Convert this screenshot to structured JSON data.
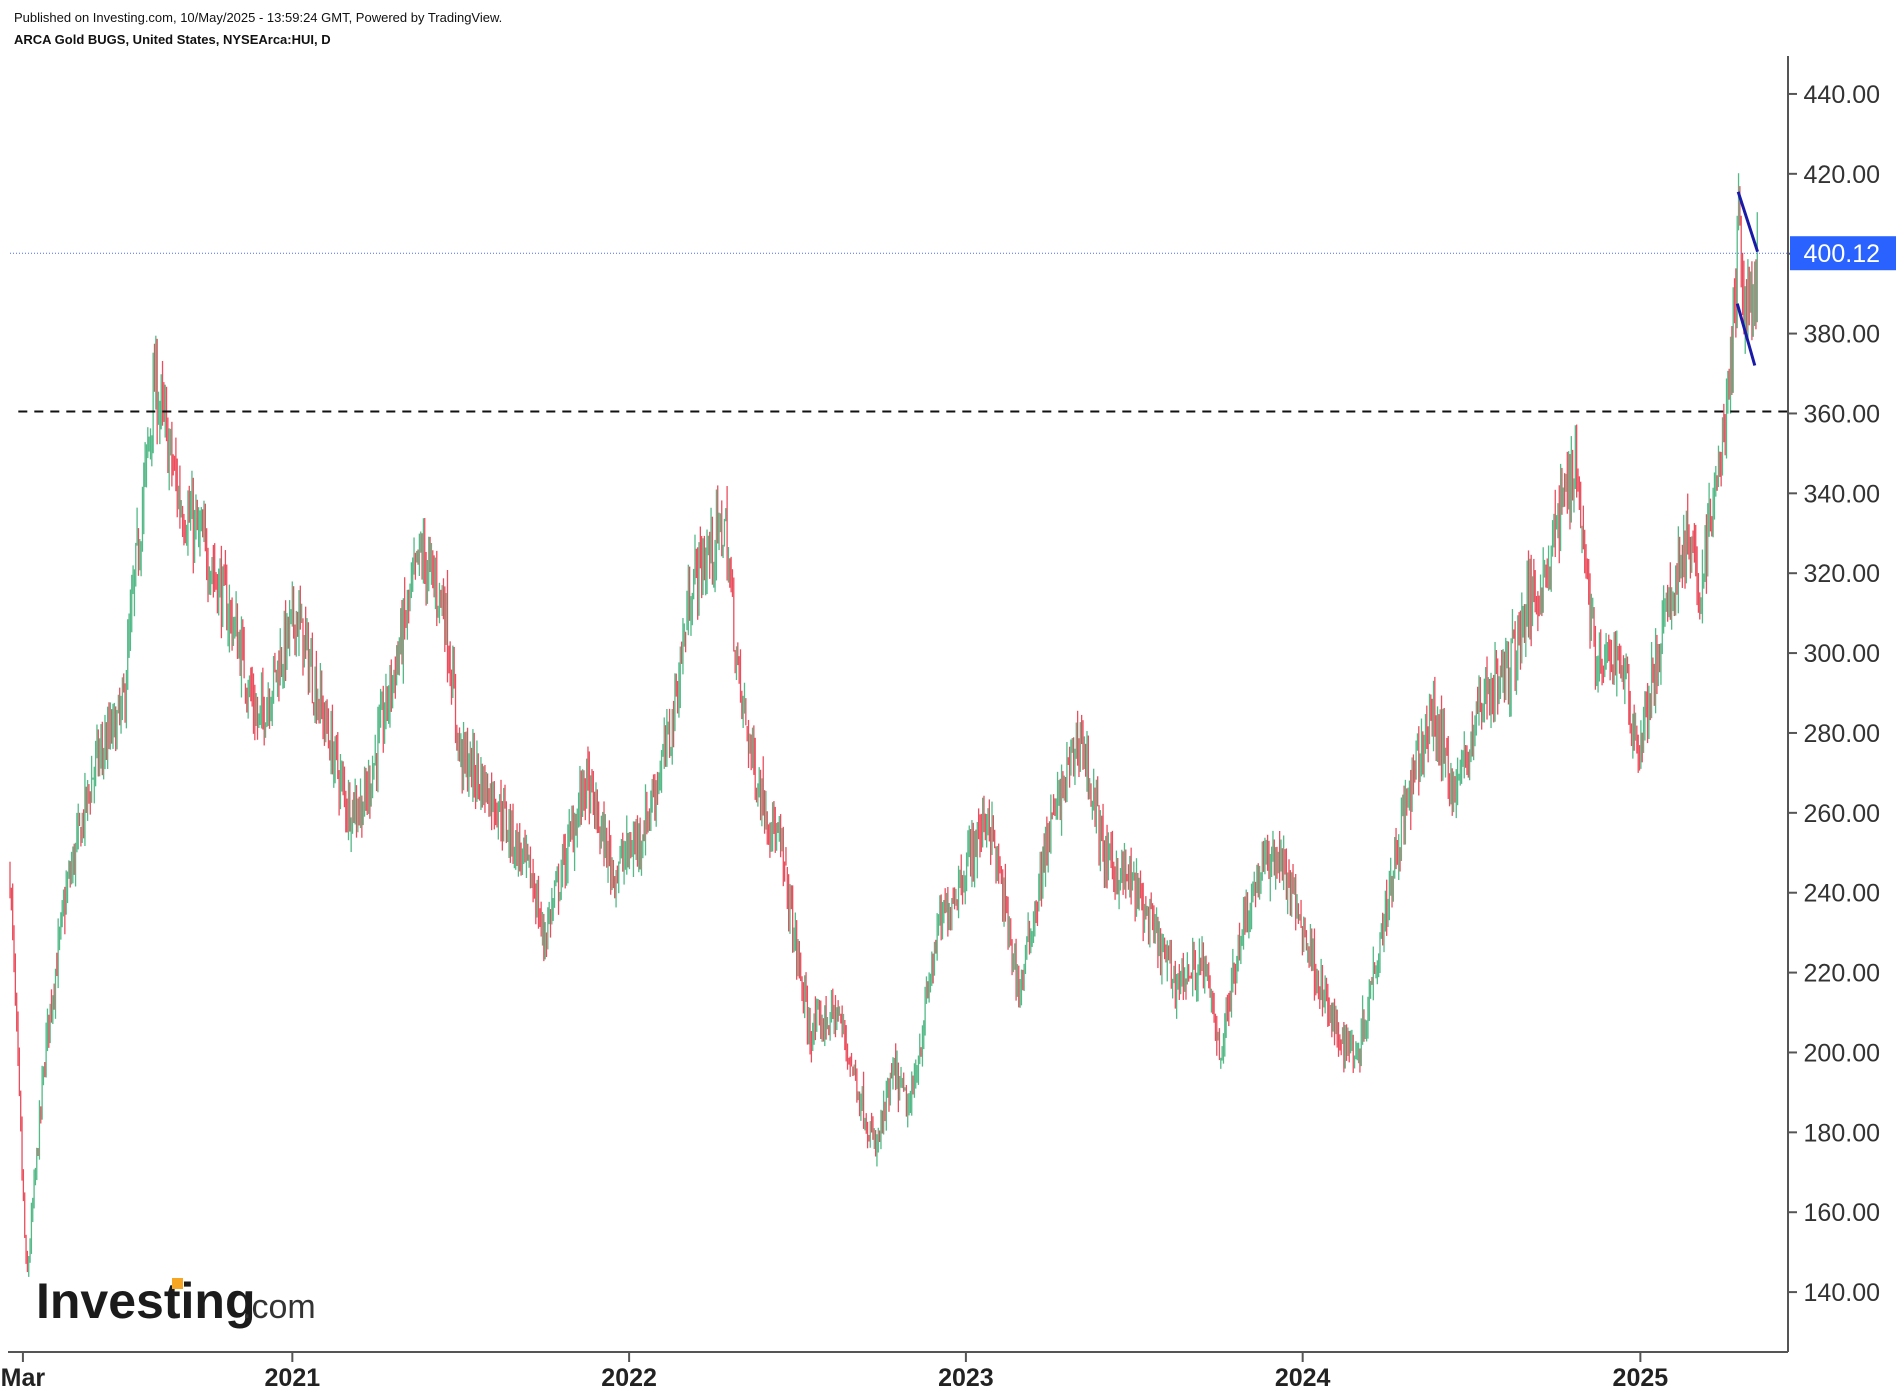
{
  "header": {
    "publish_line": "Published on Investing.com, 10/May/2025 - 13:59:24 GMT, Powered by TradingView.",
    "symbol_line": "ARCA Gold BUGS, United States, NYSEArca:HUI, D"
  },
  "branding": {
    "logo_main": "Investing",
    "logo_suffix": ".com",
    "logo_dot_color": "#f6a623"
  },
  "colors": {
    "up": "#53b987",
    "down": "#eb4d5c",
    "last_price_badge": "#2962ff",
    "last_price_line": "#4a6cf7",
    "trendline": "#1a1aa8",
    "support_line": "#111111",
    "axis": "#555555"
  },
  "chart_data": {
    "type": "candlestick",
    "title": "ARCA Gold BUGS, United States, NYSEArca:HUI, D",
    "x_ticks": [
      "Mar",
      "2021",
      "2022",
      "2023",
      "2024",
      "2025"
    ],
    "y_ticks": [
      "140.00",
      "160.00",
      "180.00",
      "200.00",
      "220.00",
      "240.00",
      "260.00",
      "280.00",
      "300.00",
      "320.00",
      "340.00",
      "360.00",
      "380.00",
      "400.00",
      "420.00",
      "440.00"
    ],
    "ylim": [
      125,
      449
    ],
    "xlim": [
      "2020-03-01",
      "2025-06-10"
    ],
    "last_price": "400.12",
    "last_price_value": 400.12,
    "series_points": [
      [
        "2020-03-01",
        245
      ],
      [
        "2020-03-19",
        142
      ],
      [
        "2020-04-10",
        205
      ],
      [
        "2020-05-01",
        240
      ],
      [
        "2020-06-01",
        272
      ],
      [
        "2020-07-01",
        285
      ],
      [
        "2020-07-15",
        320
      ],
      [
        "2020-08-05",
        368
      ],
      [
        "2020-09-01",
        338
      ],
      [
        "2020-10-01",
        325
      ],
      [
        "2020-11-01",
        305
      ],
      [
        "2020-11-25",
        282
      ],
      [
        "2021-01-05",
        310
      ],
      [
        "2021-03-01",
        262
      ],
      [
        "2021-03-20",
        262
      ],
      [
        "2021-05-20",
        325
      ],
      [
        "2021-06-15",
        312
      ],
      [
        "2021-07-01",
        275
      ],
      [
        "2021-08-10",
        263
      ],
      [
        "2021-09-20",
        242
      ],
      [
        "2021-09-30",
        228
      ],
      [
        "2021-11-15",
        268
      ],
      [
        "2021-12-15",
        245
      ],
      [
        "2022-01-15",
        255
      ],
      [
        "2022-02-15",
        280
      ],
      [
        "2022-03-10",
        318
      ],
      [
        "2022-04-15",
        332
      ],
      [
        "2022-05-01",
        290
      ],
      [
        "2022-05-20",
        268
      ],
      [
        "2022-06-15",
        250
      ],
      [
        "2022-07-15",
        205
      ],
      [
        "2022-08-15",
        210
      ],
      [
        "2022-09-25",
        175
      ],
      [
        "2022-10-15",
        195
      ],
      [
        "2022-11-01",
        185
      ],
      [
        "2022-12-01",
        230
      ],
      [
        "2023-01-25",
        260
      ],
      [
        "2023-02-28",
        215
      ],
      [
        "2023-04-01",
        255
      ],
      [
        "2023-05-05",
        280
      ],
      [
        "2023-06-01",
        248
      ],
      [
        "2023-07-01",
        242
      ],
      [
        "2023-08-15",
        218
      ],
      [
        "2023-09-15",
        222
      ],
      [
        "2023-10-05",
        200
      ],
      [
        "2023-10-25",
        230
      ],
      [
        "2023-11-15",
        245
      ],
      [
        "2023-12-05",
        250
      ],
      [
        "2024-01-10",
        225
      ],
      [
        "2024-02-05",
        205
      ],
      [
        "2024-03-01",
        200
      ],
      [
        "2024-04-15",
        255
      ],
      [
        "2024-05-20",
        285
      ],
      [
        "2024-06-15",
        265
      ],
      [
        "2024-07-15",
        290
      ],
      [
        "2024-08-10",
        295
      ],
      [
        "2024-09-01",
        312
      ],
      [
        "2024-09-20",
        320
      ],
      [
        "2024-10-22",
        350
      ],
      [
        "2024-11-15",
        295
      ],
      [
        "2024-12-10",
        300
      ],
      [
        "2024-12-30",
        275
      ],
      [
        "2025-01-25",
        305
      ],
      [
        "2025-02-20",
        330
      ],
      [
        "2025-03-05",
        315
      ],
      [
        "2025-03-20",
        335
      ],
      [
        "2025-04-01",
        355
      ],
      [
        "2025-04-10",
        372
      ],
      [
        "2025-04-18",
        410
      ],
      [
        "2025-04-24",
        385
      ],
      [
        "2025-05-01",
        388
      ],
      [
        "2025-05-09",
        400.12
      ]
    ],
    "horizontal_lines": [
      {
        "value": 360.5,
        "style": "dashed",
        "x_start": "2020-03-10"
      }
    ],
    "trendlines": [
      {
        "from": [
          "2025-04-17",
          415.5
        ],
        "to": [
          "2025-05-08",
          400.5
        ]
      },
      {
        "from": [
          "2025-04-16",
          387.5
        ],
        "to": [
          "2025-05-05",
          372
        ]
      }
    ]
  }
}
